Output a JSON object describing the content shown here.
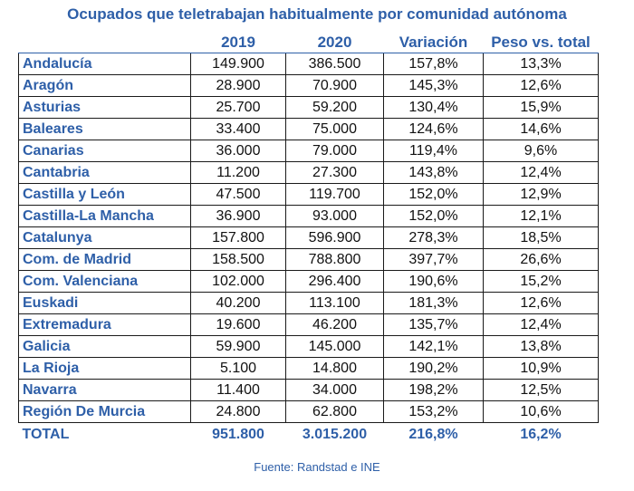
{
  "chart_data": {
    "type": "table",
    "title": "Ocupados que teletrabajan habitualmente por comunidad autónoma",
    "columns": [
      "",
      "2019",
      "2020",
      "Variación",
      "Peso vs. total"
    ],
    "rows": [
      [
        "Andalucía",
        "149.900",
        "386.500",
        "157,8%",
        "13,3%"
      ],
      [
        "Aragón",
        "28.900",
        "70.900",
        "145,3%",
        "12,6%"
      ],
      [
        "Asturias",
        "25.700",
        "59.200",
        "130,4%",
        "15,9%"
      ],
      [
        "Baleares",
        "33.400",
        "75.000",
        "124,6%",
        "14,6%"
      ],
      [
        "Canarias",
        "36.000",
        "79.000",
        "119,4%",
        "9,6%"
      ],
      [
        "Cantabria",
        "11.200",
        "27.300",
        "143,8%",
        "12,4%"
      ],
      [
        "Castilla y León",
        "47.500",
        "119.700",
        "152,0%",
        "12,9%"
      ],
      [
        "Castilla-La Mancha",
        "36.900",
        "93.000",
        "152,0%",
        "12,1%"
      ],
      [
        "Catalunya",
        "157.800",
        "596.900",
        "278,3%",
        "18,5%"
      ],
      [
        "Com. de Madrid",
        "158.500",
        "788.800",
        "397,7%",
        "26,6%"
      ],
      [
        "Com. Valenciana",
        "102.000",
        "296.400",
        "190,6%",
        "15,2%"
      ],
      [
        "Euskadi",
        "40.200",
        "113.100",
        "181,3%",
        "12,6%"
      ],
      [
        "Extremadura",
        "19.600",
        "46.200",
        "135,7%",
        "12,4%"
      ],
      [
        "Galicia",
        "59.900",
        "145.000",
        "142,1%",
        "13,8%"
      ],
      [
        "La Rioja",
        "5.100",
        "14.800",
        "190,2%",
        "10,9%"
      ],
      [
        "Navarra",
        "11.400",
        "34.000",
        "198,2%",
        "12,5%"
      ],
      [
        "Región De Murcia",
        "24.800",
        "62.800",
        "153,2%",
        "10,6%"
      ]
    ],
    "total": [
      "TOTAL",
      "951.800",
      "3.015.200",
      "216,8%",
      "16,2%"
    ],
    "source": "Fuente: Randstad e INE"
  },
  "colors": {
    "accent": "#2e5fa8",
    "text": "#111111",
    "border": "#1a1a1a"
  }
}
